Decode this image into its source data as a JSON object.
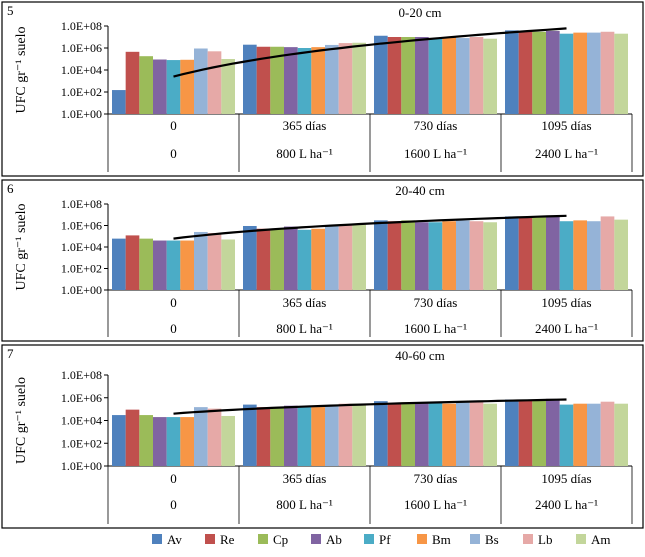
{
  "chart_data": [
    {
      "type": "bar",
      "panel_number": "5",
      "title": "0-20 cm",
      "ylabel": "UFC gr⁻¹ suelo",
      "yscale": "log",
      "ylim": [
        1,
        100000000
      ],
      "yticks": [
        "1.0E+00",
        "1.0E+02",
        "1.0E+04",
        "1.0E+06",
        "1.0E+08"
      ],
      "categories": [
        "0",
        "365 días",
        "730 días",
        "1095 días"
      ],
      "categories_row2": [
        "0",
        "800 L ha⁻¹",
        "1600 L ha⁻¹",
        "2400 L ha⁻¹"
      ],
      "series": [
        {
          "name": "Av",
          "values": [
            150,
            2000000,
            13000000,
            40000000
          ]
        },
        {
          "name": "Re",
          "values": [
            450000,
            1300000,
            10000000,
            30000000
          ]
        },
        {
          "name": "Cp",
          "values": [
            180000,
            1300000,
            10000000,
            30000000
          ]
        },
        {
          "name": "Ab",
          "values": [
            90000,
            1200000,
            10000000,
            35000000
          ]
        },
        {
          "name": "Pf",
          "values": [
            80000,
            1000000,
            7000000,
            20000000
          ]
        },
        {
          "name": "Bm",
          "values": [
            85000,
            1200000,
            10000000,
            25000000
          ]
        },
        {
          "name": "Bs",
          "values": [
            900000,
            1900000,
            8000000,
            25000000
          ]
        },
        {
          "name": "Lb",
          "values": [
            500000,
            2800000,
            10000000,
            30000000
          ]
        },
        {
          "name": "Am",
          "values": [
            100000,
            3000000,
            7000000,
            20000000
          ]
        }
      ],
      "trendline": {
        "from": 2500.0,
        "to": 60000000.0
      }
    },
    {
      "type": "bar",
      "panel_number": "6",
      "title": "20-40 cm",
      "ylabel": "UFC gr⁻¹ suelo",
      "yscale": "log",
      "ylim": [
        1,
        100000000
      ],
      "yticks": [
        "1.0E+00",
        "1.0E+02",
        "1.0E+04",
        "1.0E+06",
        "1.0E+08"
      ],
      "categories": [
        "0",
        "365 días",
        "730 días",
        "1095 días"
      ],
      "categories_row2": [
        "0",
        "800 L ha⁻¹",
        "1600 L ha⁻¹",
        "2400 L ha⁻¹"
      ],
      "series": [
        {
          "name": "Av",
          "values": [
            60000,
            900000,
            3000000,
            7000000
          ]
        },
        {
          "name": "Re",
          "values": [
            120000,
            500000,
            2500000,
            6000000
          ]
        },
        {
          "name": "Cp",
          "values": [
            60000,
            500000,
            3000000,
            6500000
          ]
        },
        {
          "name": "Ab",
          "values": [
            40000,
            800000,
            2000000,
            7500000
          ]
        },
        {
          "name": "Pf",
          "values": [
            40000,
            400000,
            2000000,
            2500000
          ]
        },
        {
          "name": "Bm",
          "values": [
            40000,
            500000,
            2500000,
            3000000
          ]
        },
        {
          "name": "Bs",
          "values": [
            250000,
            900000,
            3000000,
            2500000
          ]
        },
        {
          "name": "Lb",
          "values": [
            200000,
            1000000,
            2500000,
            7000000
          ]
        },
        {
          "name": "Am",
          "values": [
            50000,
            1200000,
            2000000,
            3500000
          ]
        }
      ],
      "trendline": {
        "from": 60000.0,
        "to": 8000000.0
      }
    },
    {
      "type": "bar",
      "panel_number": "7",
      "title": "40-60 cm",
      "ylabel": "UFC gr⁻¹ suelo",
      "yscale": "log",
      "ylim": [
        1,
        100000000
      ],
      "yticks": [
        "1.0E+00",
        "1.0E+02",
        "1.0E+04",
        "1.0E+06",
        "1.0E+08"
      ],
      "categories": [
        "0",
        "365 días",
        "730 días",
        "1095 días"
      ],
      "categories_row2": [
        "0",
        "800 L ha⁻¹",
        "1600 L ha⁻¹",
        "2400 L ha⁻¹"
      ],
      "series": [
        {
          "name": "Av",
          "values": [
            30000,
            250000,
            500000,
            700000
          ]
        },
        {
          "name": "Re",
          "values": [
            90000,
            150000,
            350000,
            600000
          ]
        },
        {
          "name": "Cp",
          "values": [
            30000,
            150000,
            400000,
            650000
          ]
        },
        {
          "name": "Ab",
          "values": [
            20000,
            200000,
            400000,
            800000
          ]
        },
        {
          "name": "Pf",
          "values": [
            20000,
            150000,
            350000,
            250000
          ]
        },
        {
          "name": "Bm",
          "values": [
            20000,
            150000,
            300000,
            300000
          ]
        },
        {
          "name": "Bs",
          "values": [
            150000,
            220000,
            400000,
            300000
          ]
        },
        {
          "name": "Lb",
          "values": [
            110000,
            300000,
            500000,
            450000
          ]
        },
        {
          "name": "Am",
          "values": [
            25000,
            300000,
            300000,
            300000
          ]
        }
      ],
      "trendline": {
        "from": 40000.0,
        "to": 700000.0
      }
    }
  ],
  "legend": [
    {
      "name": "Av",
      "color": "#4f81bd"
    },
    {
      "name": "Re",
      "color": "#c0504d"
    },
    {
      "name": "Cp",
      "color": "#9bbb59"
    },
    {
      "name": "Ab",
      "color": "#8064a2"
    },
    {
      "name": "Pf",
      "color": "#4bacc6"
    },
    {
      "name": "Bm",
      "color": "#f79646"
    },
    {
      "name": "Bs",
      "color": "#95b3d7"
    },
    {
      "name": "Lb",
      "color": "#e6a9a7"
    },
    {
      "name": "Am",
      "color": "#c3d69b"
    }
  ]
}
